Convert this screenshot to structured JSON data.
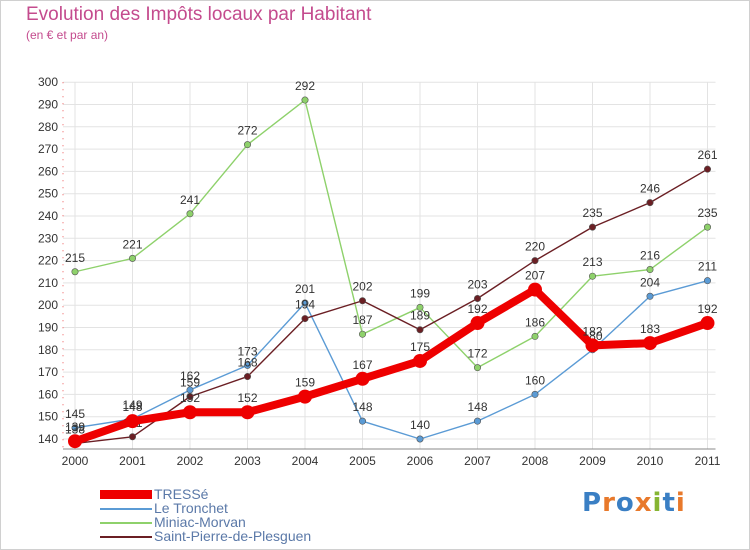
{
  "header": {
    "title": "Evolution des Impôts locaux par Habitant",
    "subtitle": "(en € et par an)"
  },
  "colors": {
    "title": "#c44b8e",
    "axis_text": "#333333",
    "legend_text": "#5b79a8",
    "grid": "#e3e3e3"
  },
  "logo": {
    "letters": [
      "P",
      "r",
      "o",
      "x",
      "i",
      "t",
      "i"
    ],
    "colors": [
      "#3a7fc4",
      "#e8792b",
      "#3a7fc4",
      "#e8792b",
      "#86b532",
      "#3a7fc4",
      "#e8792b"
    ]
  },
  "chart_data": {
    "type": "line",
    "title": "Evolution des Impôts locaux par Habitant",
    "subtitle": "(en € et par an)",
    "xlabel": "",
    "ylabel": "",
    "x": [
      "2000",
      "2001",
      "2002",
      "2003",
      "2004",
      "2005",
      "2006",
      "2007",
      "2008",
      "2009",
      "2010",
      "2011"
    ],
    "ylim": [
      140,
      300
    ],
    "yticks": [
      140,
      150,
      160,
      170,
      180,
      190,
      200,
      210,
      220,
      230,
      240,
      250,
      260,
      270,
      280,
      290,
      300
    ],
    "grid": true,
    "legend_position": "bottom-left",
    "series": [
      {
        "name": "Miniac-Morvan",
        "color": "#8ed16b",
        "values": [
          215,
          221,
          241,
          272,
          292,
          187,
          199,
          172,
          186,
          213,
          216,
          235
        ],
        "labels": [
          "215",
          "221",
          "241",
          "272",
          "292",
          "187",
          "199",
          "172",
          "186",
          "213",
          "216",
          "235"
        ]
      },
      {
        "name": "Le Tronchet",
        "color": "#5b9bd5",
        "values": [
          145,
          149,
          162,
          173,
          201,
          148,
          140,
          148,
          160,
          180,
          204,
          211
        ],
        "labels": [
          "145",
          "149",
          "162",
          "173",
          "201",
          "148",
          "140",
          "148",
          "160",
          "180",
          "204",
          "211"
        ]
      },
      {
        "name": "Saint-Pierre-de-Plesguen",
        "color": "#6b1f24",
        "values": [
          138,
          141,
          159,
          168,
          194,
          202,
          189,
          203,
          220,
          235,
          246,
          261
        ],
        "labels": [
          "138",
          "141",
          "159",
          "168",
          "194",
          "202",
          "189",
          "203",
          "220",
          "235",
          "246",
          "261"
        ]
      },
      {
        "name": "TRESSé",
        "color": "#ee0000",
        "values": [
          139,
          148,
          152,
          152,
          159,
          167,
          175,
          192,
          207,
          182,
          183,
          192
        ],
        "labels": [
          "139",
          "148",
          "152",
          "152",
          "159",
          "167",
          "175",
          "192",
          "207",
          "182",
          "183",
          "192"
        ]
      }
    ],
    "legend": [
      {
        "name": "TRESSé",
        "color": "#ee0000"
      },
      {
        "name": "Le Tronchet",
        "color": "#5b9bd5"
      },
      {
        "name": "Miniac-Morvan",
        "color": "#8ed16b"
      },
      {
        "name": "Saint-Pierre-de-Plesguen",
        "color": "#6b1f24"
      }
    ]
  }
}
